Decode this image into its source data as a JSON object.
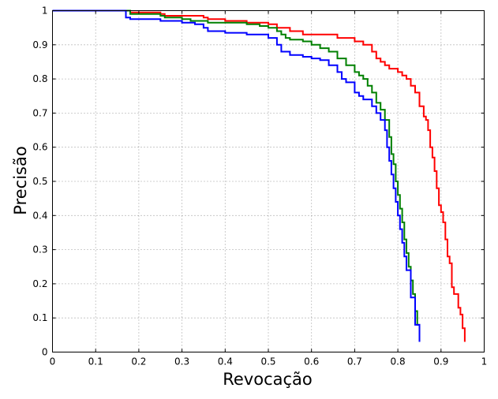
{
  "chart_data": {
    "type": "line",
    "title": "",
    "xlabel": "Revocação",
    "ylabel": "Precisão",
    "xlim": [
      0,
      1
    ],
    "ylim": [
      0,
      1
    ],
    "grid": true,
    "x_ticks": [
      "0",
      "0.1",
      "0.2",
      "0.3",
      "0.4",
      "0.5",
      "0.6",
      "0.7",
      "0.8",
      "0.9",
      "1"
    ],
    "y_ticks": [
      "0",
      "0.1",
      "0.2",
      "0.3",
      "0.4",
      "0.5",
      "0.6",
      "0.7",
      "0.8",
      "0.9",
      "1"
    ],
    "colors": {
      "red": "#ff0000",
      "green": "#008000",
      "blue": "#0000ff"
    },
    "series": [
      {
        "color": "#ff0000",
        "x": [
          0,
          0.17,
          0.18,
          0.25,
          0.26,
          0.33,
          0.35,
          0.36,
          0.4,
          0.45,
          0.5,
          0.52,
          0.55,
          0.58,
          0.62,
          0.66,
          0.7,
          0.72,
          0.74,
          0.75,
          0.76,
          0.77,
          0.78,
          0.8,
          0.81,
          0.82,
          0.83,
          0.84,
          0.85,
          0.86,
          0.865,
          0.87,
          0.875,
          0.88,
          0.885,
          0.89,
          0.895,
          0.9,
          0.905,
          0.91,
          0.915,
          0.92,
          0.925,
          0.93,
          0.94,
          0.945,
          0.95,
          0.955
        ],
        "y": [
          1.0,
          1.0,
          0.995,
          0.99,
          0.985,
          0.985,
          0.98,
          0.975,
          0.97,
          0.965,
          0.96,
          0.95,
          0.94,
          0.93,
          0.93,
          0.92,
          0.91,
          0.9,
          0.88,
          0.86,
          0.85,
          0.84,
          0.83,
          0.82,
          0.81,
          0.8,
          0.78,
          0.76,
          0.72,
          0.69,
          0.68,
          0.65,
          0.6,
          0.57,
          0.53,
          0.48,
          0.43,
          0.41,
          0.38,
          0.33,
          0.28,
          0.26,
          0.19,
          0.17,
          0.13,
          0.11,
          0.07,
          0.03
        ]
      },
      {
        "color": "#008000",
        "x": [
          0,
          0.17,
          0.18,
          0.25,
          0.26,
          0.3,
          0.32,
          0.36,
          0.4,
          0.45,
          0.48,
          0.5,
          0.52,
          0.53,
          0.54,
          0.55,
          0.58,
          0.6,
          0.62,
          0.64,
          0.66,
          0.68,
          0.7,
          0.71,
          0.72,
          0.73,
          0.74,
          0.75,
          0.76,
          0.77,
          0.78,
          0.785,
          0.79,
          0.795,
          0.8,
          0.805,
          0.81,
          0.815,
          0.82,
          0.825,
          0.83,
          0.835,
          0.84,
          0.845,
          0.85
        ],
        "y": [
          1.0,
          1.0,
          0.99,
          0.985,
          0.98,
          0.975,
          0.97,
          0.965,
          0.965,
          0.96,
          0.955,
          0.95,
          0.94,
          0.93,
          0.92,
          0.915,
          0.91,
          0.9,
          0.89,
          0.88,
          0.86,
          0.84,
          0.82,
          0.81,
          0.8,
          0.78,
          0.76,
          0.73,
          0.71,
          0.68,
          0.63,
          0.58,
          0.55,
          0.5,
          0.46,
          0.42,
          0.38,
          0.33,
          0.29,
          0.25,
          0.21,
          0.17,
          0.12,
          0.08,
          0.03
        ]
      },
      {
        "color": "#0000ff",
        "x": [
          0,
          0.16,
          0.17,
          0.18,
          0.25,
          0.3,
          0.33,
          0.35,
          0.36,
          0.4,
          0.45,
          0.5,
          0.52,
          0.53,
          0.55,
          0.58,
          0.6,
          0.62,
          0.64,
          0.66,
          0.67,
          0.68,
          0.7,
          0.71,
          0.72,
          0.74,
          0.75,
          0.76,
          0.77,
          0.775,
          0.78,
          0.785,
          0.79,
          0.795,
          0.8,
          0.805,
          0.81,
          0.815,
          0.82,
          0.83,
          0.84,
          0.85
        ],
        "y": [
          1.0,
          1.0,
          0.98,
          0.975,
          0.97,
          0.965,
          0.96,
          0.95,
          0.94,
          0.935,
          0.93,
          0.92,
          0.9,
          0.88,
          0.87,
          0.865,
          0.86,
          0.855,
          0.84,
          0.82,
          0.8,
          0.79,
          0.76,
          0.75,
          0.74,
          0.72,
          0.7,
          0.68,
          0.65,
          0.6,
          0.56,
          0.52,
          0.48,
          0.44,
          0.4,
          0.36,
          0.32,
          0.28,
          0.24,
          0.16,
          0.08,
          0.03
        ]
      }
    ]
  }
}
